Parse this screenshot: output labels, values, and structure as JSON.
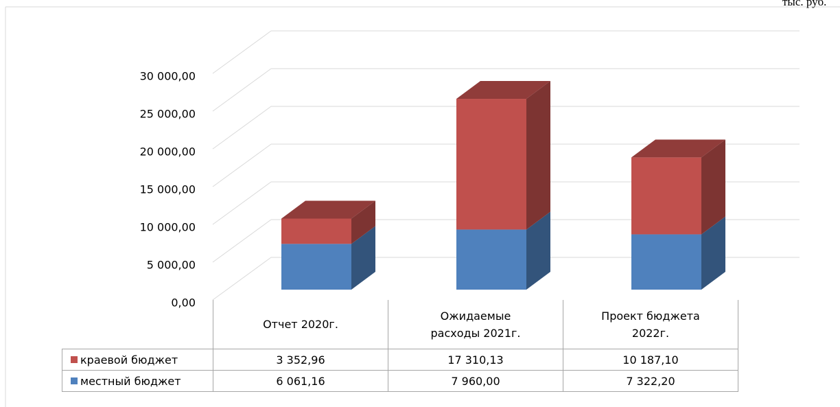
{
  "chart_data": {
    "type": "bar",
    "stacked": true,
    "three_d": true,
    "unit_note": "тыс. руб.",
    "categories": [
      "Отчет 2020г.",
      "Ожидаемые расходы 2021г.",
      "Проект бюджета 2022г."
    ],
    "series": [
      {
        "name": "местный бюджет",
        "color": "#4f81bd",
        "values": [
          6061.16,
          7960.0,
          7322.2
        ],
        "value_labels": [
          "6 061,16",
          "7 960,00",
          "7 322,20"
        ]
      },
      {
        "name": "краевой бюджет",
        "color": "#c0504d",
        "values": [
          3352.96,
          17310.13,
          10187.1
        ],
        "value_labels": [
          "3 352,96",
          "17 310,13",
          "10 187,10"
        ]
      }
    ],
    "ylim": [
      0,
      30000
    ],
    "yticks": [
      {
        "value": 0,
        "label": "0,00"
      },
      {
        "value": 5000,
        "label": "5 000,00"
      },
      {
        "value": 10000,
        "label": "10 000,00"
      },
      {
        "value": 15000,
        "label": "15 000,00"
      },
      {
        "value": 20000,
        "label": "20 000,00"
      },
      {
        "value": 25000,
        "label": "25 000,00"
      },
      {
        "value": 30000,
        "label": "30 000,00"
      }
    ],
    "grid": true,
    "data_table": true
  }
}
